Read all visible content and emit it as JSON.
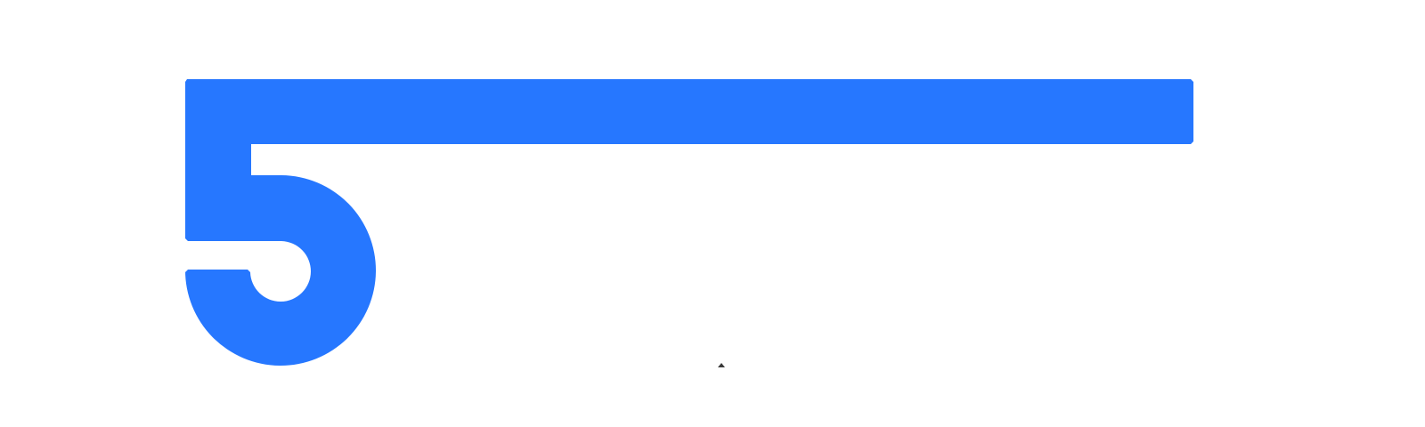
{
  "logo": {
    "name": "five-bar-logo",
    "color": "#2677FF"
  },
  "background_color": "#FFFFFF",
  "cursor": {
    "icon": "cursor-caret-icon",
    "color": "#3A3A3A"
  }
}
